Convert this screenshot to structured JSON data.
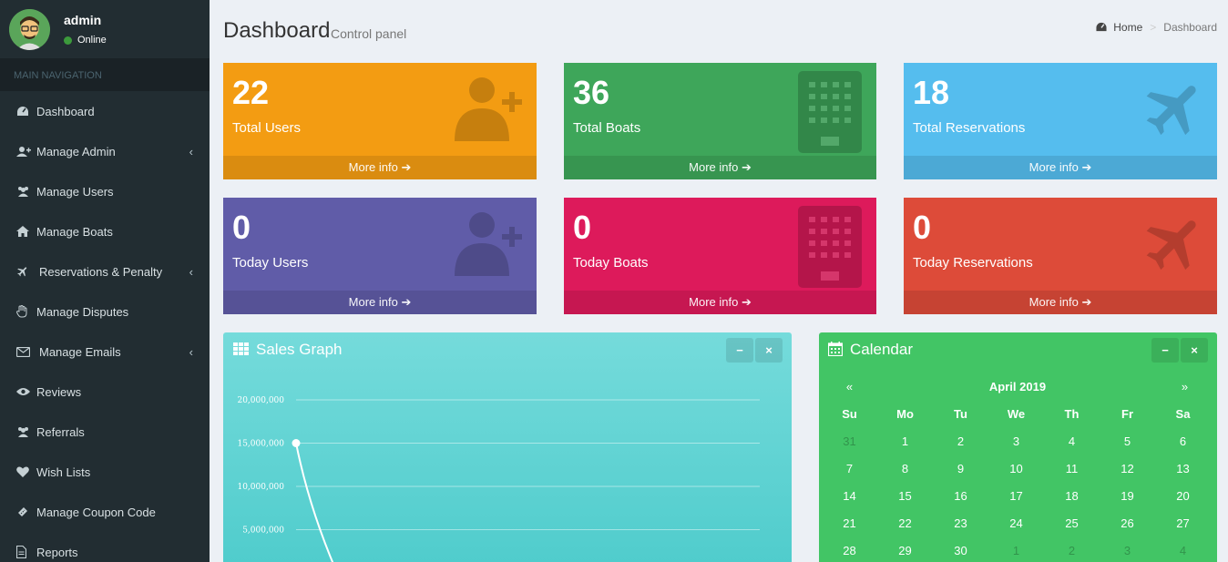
{
  "user": {
    "name": "admin",
    "status": "Online"
  },
  "nav": {
    "header": "MAIN NAVIGATION",
    "items": [
      {
        "label": "Dashboard",
        "icon": "dashboard-icon",
        "chevron": false
      },
      {
        "label": "Manage Admin",
        "icon": "user-plus-icon",
        "chevron": true
      },
      {
        "label": "Manage Users",
        "icon": "users-icon",
        "chevron": false
      },
      {
        "label": "Manage Boats",
        "icon": "home-icon",
        "chevron": false
      },
      {
        "label": "Reservations & Penalty",
        "icon": "plane-icon",
        "chevron": true
      },
      {
        "label": "Manage Disputes",
        "icon": "hand-icon",
        "chevron": false
      },
      {
        "label": "Manage Emails",
        "icon": "envelope-icon",
        "chevron": true
      },
      {
        "label": "Reviews",
        "icon": "eye-icon",
        "chevron": false
      },
      {
        "label": "Referrals",
        "icon": "users-icon",
        "chevron": false
      },
      {
        "label": "Wish Lists",
        "icon": "heart-icon",
        "chevron": false
      },
      {
        "label": "Manage Coupon Code",
        "icon": "ticket-icon",
        "chevron": false
      },
      {
        "label": "Reports",
        "icon": "file-icon",
        "chevron": false
      }
    ]
  },
  "header": {
    "title": "Dashboard",
    "subtitle": "Control panel"
  },
  "breadcrumb": {
    "home": "Home",
    "sep": ">",
    "current": "Dashboard"
  },
  "boxes": [
    {
      "value": "22",
      "label": "Total Users",
      "footer": "More info",
      "color": "#f39c12",
      "icon": "user-plus-icon"
    },
    {
      "value": "36",
      "label": "Total Boats",
      "footer": "More info",
      "color": "#3ea65a",
      "icon": "building-icon"
    },
    {
      "value": "18",
      "label": "Total Reservations",
      "footer": "More info",
      "color": "#55bdee",
      "icon": "plane-icon"
    },
    {
      "value": "0",
      "label": "Today Users",
      "footer": "More info",
      "color": "#605ca8",
      "icon": "user-plus-icon"
    },
    {
      "value": "0",
      "label": "Today Boats",
      "footer": "More info",
      "color": "#dd1a5b",
      "icon": "building-icon"
    },
    {
      "value": "0",
      "label": "Today Reservations",
      "footer": "More info",
      "color": "#dd4b39",
      "icon": "plane-icon"
    }
  ],
  "sales": {
    "title": "Sales Graph",
    "chart_data": {
      "type": "line",
      "y_ticks": [
        "20,000,000",
        "15,000,000",
        "10,000,000",
        "5,000,000"
      ],
      "ylim": [
        0,
        20000000
      ],
      "points": [
        {
          "y": 15000000
        }
      ]
    }
  },
  "calendar": {
    "title": "Calendar",
    "prev": "«",
    "next": "»",
    "month": "April 2019",
    "weekdays": [
      "Su",
      "Mo",
      "Tu",
      "We",
      "Th",
      "Fr",
      "Sa"
    ],
    "weeks": [
      [
        "31",
        "1",
        "2",
        "3",
        "4",
        "5",
        "6"
      ],
      [
        "7",
        "8",
        "9",
        "10",
        "11",
        "12",
        "13"
      ],
      [
        "14",
        "15",
        "16",
        "17",
        "18",
        "19",
        "20"
      ],
      [
        "21",
        "22",
        "23",
        "24",
        "25",
        "26",
        "27"
      ],
      [
        "28",
        "29",
        "30",
        "1",
        "2",
        "3",
        "4"
      ]
    ]
  },
  "tools": {
    "collapse": "−",
    "close": "×"
  }
}
